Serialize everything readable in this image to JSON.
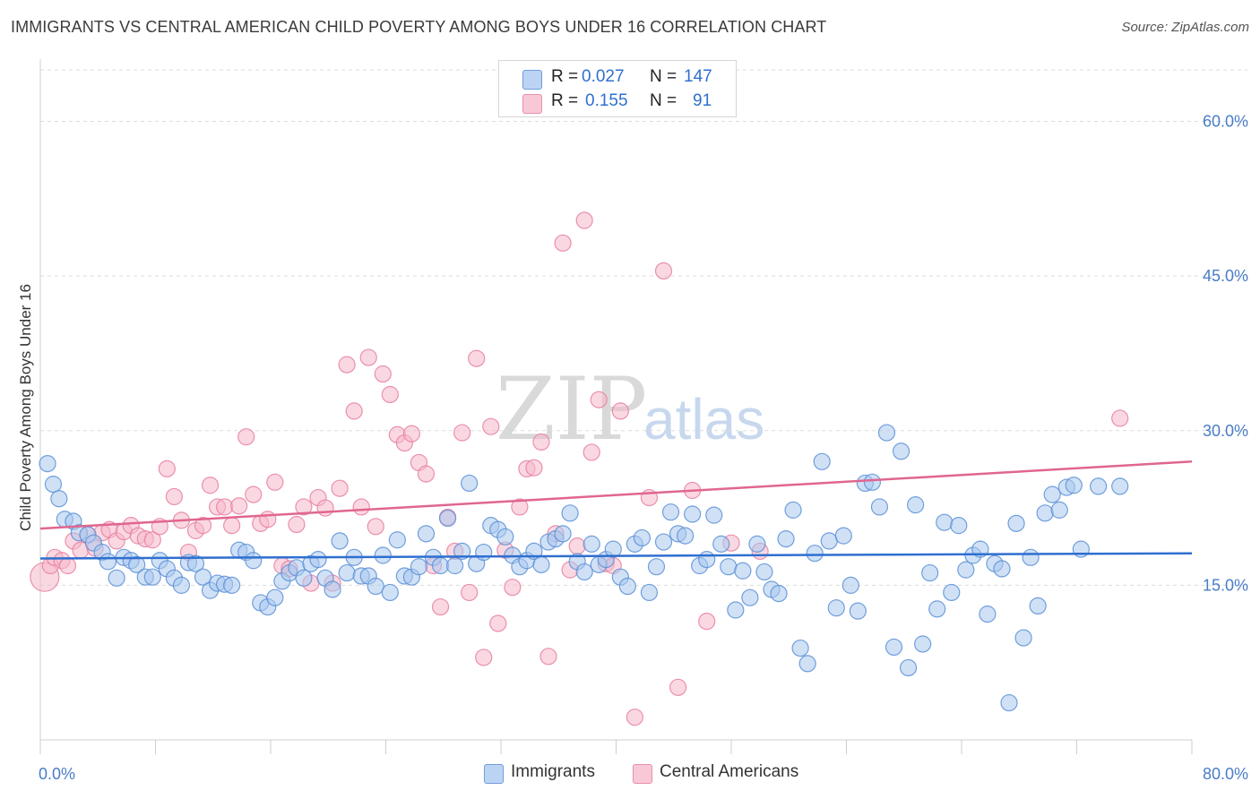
{
  "title": "IMMIGRANTS VS CENTRAL AMERICAN CHILD POVERTY AMONG BOYS UNDER 16 CORRELATION CHART",
  "source": "Source: ZipAtlas.com",
  "watermark": {
    "zip": "ZIP",
    "atlas": "atlas"
  },
  "legend": {
    "r_label": "R =",
    "n_label": "N =",
    "immigrants": {
      "r": "0.027",
      "n": "147"
    },
    "central": {
      "r": "0.155",
      "n": "91"
    }
  },
  "colors": {
    "immigrants_fill": "#a9c8ef",
    "immigrants_stroke": "#5b8fd6",
    "immigrants_line": "#2f6fd0",
    "central_fill": "#f6b8cb",
    "central_stroke": "#e87fa0",
    "central_line": "#e0668f",
    "grid": "#dcdcdc",
    "tick_text": "#4a7cc7"
  },
  "chart_data": {
    "type": "scatter",
    "title": "IMMIGRANTS VS CENTRAL AMERICAN CHILD POVERTY AMONG BOYS UNDER 16 CORRELATION CHART",
    "xlabel": "",
    "ylabel": "Child Poverty Among Boys Under 16",
    "xlim": [
      0,
      80
    ],
    "ylim": [
      0,
      65
    ],
    "x_tick_labels": [
      "0.0%",
      "80.0%"
    ],
    "y_ticks": [
      15,
      30,
      45,
      60
    ],
    "y_tick_labels": [
      "15.0%",
      "30.0%",
      "45.0%",
      "60.0%"
    ],
    "grid": true,
    "legend_position": "top-center",
    "series": [
      {
        "name": "Immigrants",
        "trend": {
          "x": [
            0,
            80
          ],
          "y": [
            17.6,
            18.1
          ]
        },
        "points": [
          [
            0.5,
            26.8
          ],
          [
            0.9,
            24.8
          ],
          [
            1.3,
            23.4
          ],
          [
            1.7,
            21.4
          ],
          [
            2.3,
            21.2
          ],
          [
            2.7,
            20.1
          ],
          [
            3.3,
            19.9
          ],
          [
            3.7,
            19.1
          ],
          [
            4.3,
            18.2
          ],
          [
            4.7,
            17.3
          ],
          [
            5.3,
            15.7
          ],
          [
            5.8,
            17.7
          ],
          [
            6.3,
            17.4
          ],
          [
            6.7,
            17.0
          ],
          [
            7.3,
            15.8
          ],
          [
            7.8,
            15.8
          ],
          [
            8.3,
            17.4
          ],
          [
            8.8,
            16.6
          ],
          [
            9.3,
            15.7
          ],
          [
            9.8,
            15.0
          ],
          [
            10.3,
            17.2
          ],
          [
            10.8,
            17.1
          ],
          [
            11.3,
            15.8
          ],
          [
            11.8,
            14.5
          ],
          [
            12.3,
            15.2
          ],
          [
            12.8,
            15.1
          ],
          [
            13.3,
            15.0
          ],
          [
            13.8,
            18.4
          ],
          [
            14.3,
            18.2
          ],
          [
            14.8,
            17.4
          ],
          [
            15.3,
            13.3
          ],
          [
            15.8,
            12.9
          ],
          [
            16.3,
            13.8
          ],
          [
            16.8,
            15.4
          ],
          [
            17.3,
            16.2
          ],
          [
            17.8,
            16.7
          ],
          [
            18.3,
            15.7
          ],
          [
            18.8,
            17.1
          ],
          [
            19.3,
            17.5
          ],
          [
            19.8,
            15.7
          ],
          [
            20.3,
            14.6
          ],
          [
            20.8,
            19.3
          ],
          [
            21.3,
            16.2
          ],
          [
            21.8,
            17.7
          ],
          [
            22.3,
            15.9
          ],
          [
            22.8,
            15.9
          ],
          [
            23.3,
            14.9
          ],
          [
            23.8,
            17.9
          ],
          [
            24.3,
            14.3
          ],
          [
            24.8,
            19.4
          ],
          [
            25.3,
            15.9
          ],
          [
            25.8,
            15.8
          ],
          [
            26.3,
            16.8
          ],
          [
            26.8,
            20.0
          ],
          [
            27.3,
            17.7
          ],
          [
            27.8,
            16.9
          ],
          [
            28.3,
            21.5
          ],
          [
            28.8,
            16.9
          ],
          [
            29.3,
            18.3
          ],
          [
            29.8,
            24.9
          ],
          [
            30.3,
            17.1
          ],
          [
            30.8,
            18.2
          ],
          [
            31.3,
            20.8
          ],
          [
            31.8,
            20.4
          ],
          [
            32.3,
            19.7
          ],
          [
            32.8,
            17.9
          ],
          [
            33.3,
            16.8
          ],
          [
            33.8,
            17.4
          ],
          [
            34.3,
            18.3
          ],
          [
            34.8,
            17.0
          ],
          [
            35.3,
            19.2
          ],
          [
            35.8,
            19.5
          ],
          [
            36.3,
            20.0
          ],
          [
            36.8,
            22.0
          ],
          [
            37.3,
            17.3
          ],
          [
            37.8,
            16.3
          ],
          [
            38.3,
            19.0
          ],
          [
            38.8,
            17.0
          ],
          [
            39.3,
            17.5
          ],
          [
            39.8,
            18.5
          ],
          [
            40.3,
            15.8
          ],
          [
            40.8,
            14.9
          ],
          [
            41.3,
            19.0
          ],
          [
            41.8,
            19.6
          ],
          [
            42.3,
            14.3
          ],
          [
            42.8,
            16.8
          ],
          [
            43.3,
            19.2
          ],
          [
            43.8,
            22.1
          ],
          [
            44.3,
            20.0
          ],
          [
            44.8,
            19.8
          ],
          [
            45.3,
            21.9
          ],
          [
            45.8,
            16.9
          ],
          [
            46.3,
            17.5
          ],
          [
            46.8,
            21.8
          ],
          [
            47.3,
            19.0
          ],
          [
            47.8,
            16.8
          ],
          [
            48.3,
            12.6
          ],
          [
            48.8,
            16.4
          ],
          [
            49.3,
            13.8
          ],
          [
            49.8,
            19.0
          ],
          [
            50.3,
            16.3
          ],
          [
            50.8,
            14.6
          ],
          [
            51.3,
            14.2
          ],
          [
            51.8,
            19.5
          ],
          [
            52.3,
            22.3
          ],
          [
            52.8,
            8.9
          ],
          [
            53.3,
            7.4
          ],
          [
            53.8,
            18.1
          ],
          [
            54.3,
            27.0
          ],
          [
            54.8,
            19.3
          ],
          [
            55.3,
            12.8
          ],
          [
            55.8,
            19.8
          ],
          [
            56.3,
            15.0
          ],
          [
            56.8,
            12.5
          ],
          [
            57.3,
            24.9
          ],
          [
            57.8,
            25.0
          ],
          [
            58.3,
            22.6
          ],
          [
            58.8,
            29.8
          ],
          [
            59.3,
            9.0
          ],
          [
            59.8,
            28.0
          ],
          [
            60.3,
            7.0
          ],
          [
            60.8,
            22.8
          ],
          [
            61.3,
            9.3
          ],
          [
            61.8,
            16.2
          ],
          [
            62.3,
            12.7
          ],
          [
            62.8,
            21.1
          ],
          [
            63.3,
            14.3
          ],
          [
            63.8,
            20.8
          ],
          [
            64.3,
            16.5
          ],
          [
            64.8,
            17.9
          ],
          [
            65.3,
            18.5
          ],
          [
            65.8,
            12.2
          ],
          [
            66.3,
            17.1
          ],
          [
            66.8,
            16.6
          ],
          [
            67.3,
            3.6
          ],
          [
            67.8,
            21.0
          ],
          [
            68.3,
            9.9
          ],
          [
            68.8,
            17.7
          ],
          [
            69.3,
            13.0
          ],
          [
            69.8,
            22.0
          ],
          [
            70.3,
            23.8
          ],
          [
            70.8,
            22.3
          ],
          [
            71.3,
            24.5
          ],
          [
            71.8,
            24.7
          ],
          [
            72.3,
            18.5
          ],
          [
            73.5,
            24.6
          ],
          [
            75.0,
            24.6
          ]
        ]
      },
      {
        "name": "Central Americans",
        "trend": {
          "x": [
            0,
            80
          ],
          "y": [
            20.5,
            27.0
          ]
        },
        "points": [
          [
            0.3,
            15.8
          ],
          [
            0.7,
            16.9
          ],
          [
            1.0,
            17.7
          ],
          [
            1.5,
            17.4
          ],
          [
            1.9,
            16.9
          ],
          [
            2.3,
            19.3
          ],
          [
            2.8,
            18.4
          ],
          [
            3.3,
            19.9
          ],
          [
            3.8,
            18.6
          ],
          [
            4.3,
            20.1
          ],
          [
            4.8,
            20.4
          ],
          [
            5.3,
            19.3
          ],
          [
            5.8,
            20.2
          ],
          [
            6.3,
            20.8
          ],
          [
            6.8,
            19.8
          ],
          [
            7.3,
            19.5
          ],
          [
            7.8,
            19.4
          ],
          [
            8.3,
            20.7
          ],
          [
            8.8,
            26.3
          ],
          [
            9.3,
            23.6
          ],
          [
            9.8,
            21.3
          ],
          [
            10.3,
            18.2
          ],
          [
            10.8,
            20.3
          ],
          [
            11.3,
            20.8
          ],
          [
            11.8,
            24.7
          ],
          [
            12.3,
            22.6
          ],
          [
            12.8,
            22.6
          ],
          [
            13.3,
            20.8
          ],
          [
            13.8,
            22.7
          ],
          [
            14.3,
            29.4
          ],
          [
            14.8,
            23.8
          ],
          [
            15.3,
            21.0
          ],
          [
            15.8,
            21.4
          ],
          [
            16.3,
            25.0
          ],
          [
            16.8,
            16.9
          ],
          [
            17.3,
            16.6
          ],
          [
            17.8,
            20.9
          ],
          [
            18.3,
            22.6
          ],
          [
            18.8,
            15.2
          ],
          [
            19.3,
            23.5
          ],
          [
            19.8,
            22.5
          ],
          [
            20.3,
            15.2
          ],
          [
            20.8,
            24.4
          ],
          [
            21.3,
            36.4
          ],
          [
            21.8,
            31.9
          ],
          [
            22.3,
            22.6
          ],
          [
            22.8,
            37.1
          ],
          [
            23.3,
            20.7
          ],
          [
            23.8,
            35.5
          ],
          [
            24.3,
            33.5
          ],
          [
            24.8,
            29.6
          ],
          [
            25.3,
            28.8
          ],
          [
            25.8,
            29.7
          ],
          [
            26.3,
            26.9
          ],
          [
            26.8,
            25.8
          ],
          [
            27.3,
            16.9
          ],
          [
            27.8,
            12.9
          ],
          [
            28.3,
            21.6
          ],
          [
            28.8,
            18.3
          ],
          [
            29.3,
            29.8
          ],
          [
            29.8,
            14.3
          ],
          [
            30.3,
            37.0
          ],
          [
            30.8,
            8.0
          ],
          [
            31.3,
            30.4
          ],
          [
            31.8,
            11.3
          ],
          [
            32.3,
            18.4
          ],
          [
            32.8,
            14.8
          ],
          [
            33.3,
            22.6
          ],
          [
            33.8,
            26.3
          ],
          [
            34.3,
            26.4
          ],
          [
            34.8,
            28.9
          ],
          [
            35.3,
            8.1
          ],
          [
            35.8,
            20.0
          ],
          [
            36.3,
            48.2
          ],
          [
            36.8,
            16.5
          ],
          [
            37.3,
            18.8
          ],
          [
            37.8,
            50.4
          ],
          [
            38.3,
            27.9
          ],
          [
            38.8,
            33.0
          ],
          [
            39.3,
            17.1
          ],
          [
            39.8,
            16.9
          ],
          [
            40.3,
            31.9
          ],
          [
            41.3,
            2.2
          ],
          [
            42.3,
            23.5
          ],
          [
            43.3,
            45.5
          ],
          [
            44.3,
            5.1
          ],
          [
            45.3,
            24.2
          ],
          [
            46.3,
            11.5
          ],
          [
            48.0,
            19.1
          ],
          [
            50.0,
            18.3
          ],
          [
            75.0,
            31.2
          ]
        ]
      }
    ]
  },
  "bottom_legend": {
    "immigrants": "Immigrants",
    "central": "Central Americans"
  }
}
